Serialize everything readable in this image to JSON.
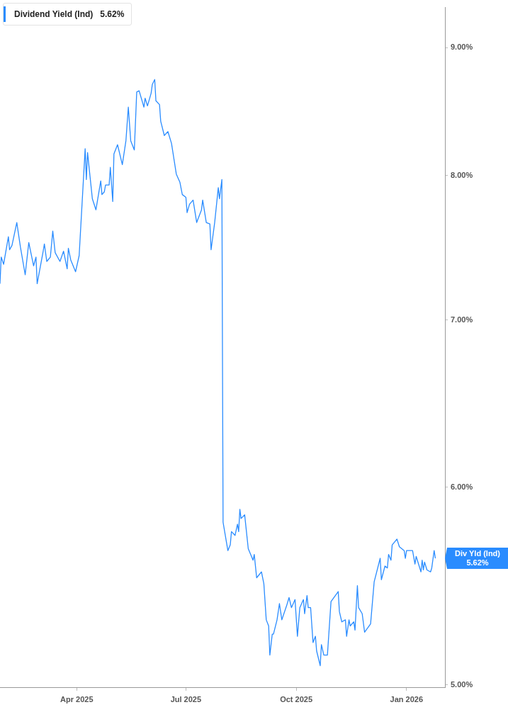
{
  "chart_data": {
    "type": "line",
    "annotations": [
      "5.62%",
      {
        "text": "Div Yld (Ind)",
        "x": "2026-01-25",
        "y": 5.62
      },
      "5.62%"
    ],
    "x": [
      "2025-01-27",
      "2025-01-28",
      "2025-01-30",
      "2025-02-03",
      "2025-02-04",
      "2025-02-06",
      "2025-02-10",
      "2025-02-13",
      "2025-02-17",
      "2025-02-20",
      "2025-02-24",
      "2025-02-26",
      "2025-02-27",
      "2025-03-04",
      "2025-03-05",
      "2025-03-07",
      "2025-03-10",
      "2025-03-12",
      "2025-03-14",
      "2025-03-18",
      "2025-03-21",
      "2025-03-24",
      "2025-03-25",
      "2025-03-27",
      "2025-03-31",
      "2025-04-03",
      "2025-04-08",
      "2025-04-09",
      "2025-04-10",
      "2025-04-14",
      "2025-04-17",
      "2025-04-21",
      "2025-04-22",
      "2025-04-24",
      "2025-04-25",
      "2025-04-28",
      "2025-04-29",
      "2025-05-01",
      "2025-05-02",
      "2025-05-05",
      "2025-05-09",
      "2025-05-12",
      "2025-05-14",
      "2025-05-16",
      "2025-05-19",
      "2025-05-21",
      "2025-05-23",
      "2025-05-27",
      "2025-05-28",
      "2025-05-30",
      "2025-06-02",
      "2025-06-03",
      "2025-06-05",
      "2025-06-06",
      "2025-06-09",
      "2025-06-10",
      "2025-06-13",
      "2025-06-16",
      "2025-06-19",
      "2025-06-23",
      "2025-06-26",
      "2025-06-28",
      "2025-07-01",
      "2025-07-02",
      "2025-07-04",
      "2025-07-07",
      "2025-07-10",
      "2025-07-14",
      "2025-07-15",
      "2025-07-18",
      "2025-07-21",
      "2025-07-22",
      "2025-07-25",
      "2025-07-28",
      "2025-07-29",
      "2025-07-31",
      "2025-08-01",
      "2025-08-05",
      "2025-08-07",
      "2025-08-08",
      "2025-08-11",
      "2025-08-13",
      "2025-08-14",
      "2025-08-15",
      "2025-08-16",
      "2025-08-19",
      "2025-08-22",
      "2025-08-26",
      "2025-08-27",
      "2025-08-29",
      "2025-09-02",
      "2025-09-04",
      "2025-09-06",
      "2025-09-08",
      "2025-09-09",
      "2025-09-11",
      "2025-09-12",
      "2025-09-15",
      "2025-09-17",
      "2025-09-19",
      "2025-09-23",
      "2025-09-25",
      "2025-09-27",
      "2025-09-30",
      "2025-10-02",
      "2025-10-04",
      "2025-10-07",
      "2025-10-08",
      "2025-10-10",
      "2025-10-11",
      "2025-10-13",
      "2025-10-15",
      "2025-10-17",
      "2025-10-18",
      "2025-10-21",
      "2025-10-22",
      "2025-10-24",
      "2025-10-27",
      "2025-10-30",
      "2025-11-05",
      "2025-11-06",
      "2025-11-08",
      "2025-11-11",
      "2025-11-12",
      "2025-11-14",
      "2025-11-15",
      "2025-11-18",
      "2025-11-19",
      "2025-11-21",
      "2025-11-22",
      "2025-11-25",
      "2025-11-27",
      "2025-12-02",
      "2025-12-05",
      "2025-12-10",
      "2025-12-11",
      "2025-12-14",
      "2025-12-16",
      "2025-12-17",
      "2025-12-19",
      "2025-12-20",
      "2025-12-24",
      "2025-12-26",
      "2025-12-30",
      "2025-12-31",
      "2026-01-01",
      "2026-01-06",
      "2026-01-08",
      "2026-01-09",
      "2026-01-13",
      "2026-01-14",
      "2026-01-15",
      "2026-01-16",
      "2026-01-18",
      "2026-01-21",
      "2026-01-22",
      "2026-01-24",
      "2026-01-25"
    ],
    "series": [
      {
        "name": "Dividend Yield (Ind)",
        "color": "#2a8cff",
        "values": [
          7.24,
          7.42,
          7.37,
          7.56,
          7.47,
          7.5,
          7.66,
          7.49,
          7.3,
          7.52,
          7.36,
          7.42,
          7.24,
          7.46,
          7.51,
          7.39,
          7.42,
          7.6,
          7.45,
          7.39,
          7.46,
          7.34,
          7.48,
          7.4,
          7.32,
          7.43,
          8.2,
          7.97,
          8.17,
          7.83,
          7.75,
          7.96,
          7.86,
          7.88,
          7.93,
          7.93,
          8.06,
          7.81,
          8.16,
          8.23,
          8.08,
          8.26,
          8.52,
          8.26,
          8.19,
          8.64,
          8.65,
          8.52,
          8.59,
          8.53,
          8.63,
          8.7,
          8.74,
          8.57,
          8.54,
          8.41,
          8.3,
          8.33,
          8.24,
          8.01,
          7.95,
          7.86,
          7.84,
          7.73,
          7.79,
          7.82,
          7.66,
          7.75,
          7.82,
          7.66,
          7.65,
          7.47,
          7.66,
          7.91,
          7.83,
          7.97,
          5.81,
          5.66,
          5.69,
          5.76,
          5.74,
          5.8,
          5.76,
          5.88,
          5.83,
          5.85,
          5.67,
          5.61,
          5.64,
          5.52,
          5.55,
          5.49,
          5.31,
          5.28,
          5.14,
          5.24,
          5.24,
          5.31,
          5.39,
          5.31,
          5.38,
          5.42,
          5.37,
          5.41,
          5.23,
          5.37,
          5.41,
          5.34,
          5.43,
          5.37,
          5.37,
          5.2,
          5.23,
          5.16,
          5.09,
          5.19,
          5.14,
          5.14,
          5.4,
          5.45,
          5.35,
          5.3,
          5.31,
          5.23,
          5.31,
          5.28,
          5.3,
          5.26,
          5.48,
          5.37,
          5.34,
          5.25,
          5.29,
          5.5,
          5.62,
          5.51,
          5.58,
          5.57,
          5.64,
          5.61,
          5.69,
          5.72,
          5.68,
          5.66,
          5.62,
          5.66,
          5.66,
          5.59,
          5.63,
          5.55,
          5.61,
          5.56,
          5.6,
          5.56,
          5.55,
          5.57,
          5.66,
          5.62
        ]
      }
    ],
    "xlim": [
      "2025-01-27",
      "2026-02-02"
    ],
    "xticks": [
      {
        "value": "2025-04-01",
        "label": "Apr 2025"
      },
      {
        "value": "2025-07-01",
        "label": "Jul 2025"
      },
      {
        "value": "2025-10-01",
        "label": "Oct 2025"
      },
      {
        "value": "2026-01-01",
        "label": "Jan 2026"
      }
    ],
    "ylim": [
      4.99,
      9.34
    ],
    "yticks": [
      {
        "value": 5,
        "label": "5.00%"
      },
      {
        "value": 6,
        "label": "6.00%"
      },
      {
        "value": 7,
        "label": "7.00%"
      },
      {
        "value": 8,
        "label": "8.00%"
      },
      {
        "value": 9,
        "label": "9.00%"
      }
    ],
    "log": "y",
    "legend": "top left",
    "marker": "none",
    "line_style": "solid"
  }
}
